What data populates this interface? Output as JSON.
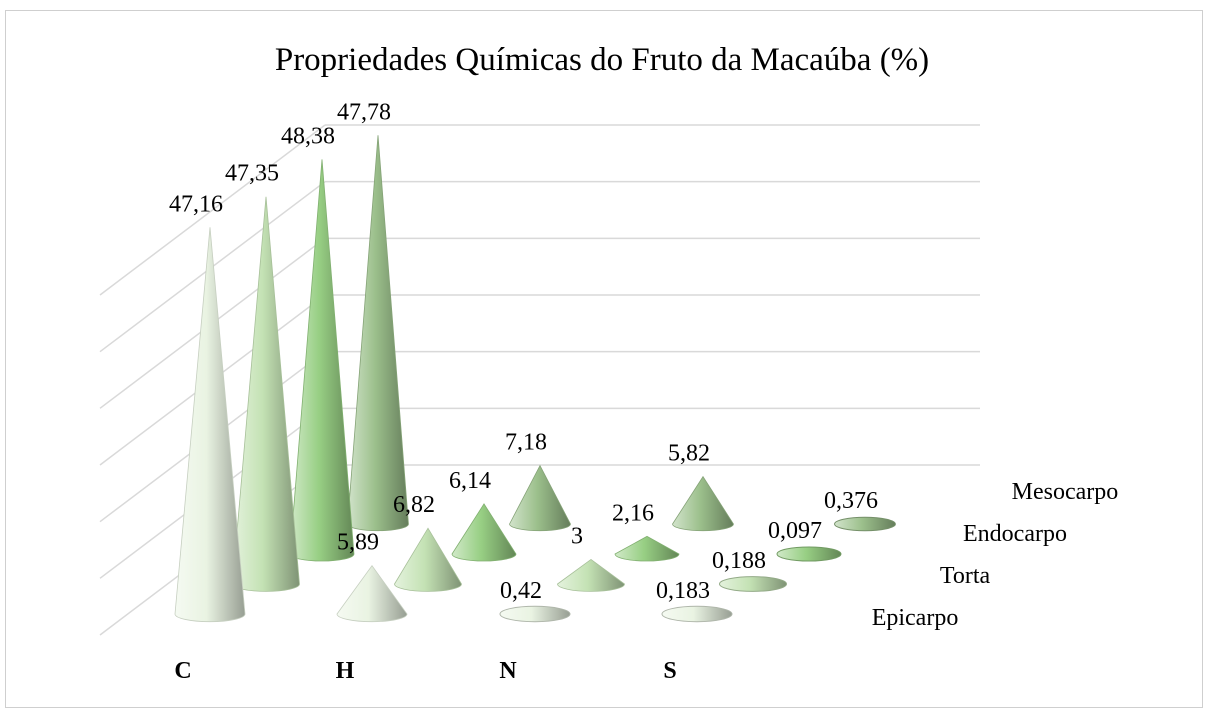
{
  "chart_data": {
    "type": "bar",
    "bar_shape": "cone",
    "view": "3d",
    "title": "Propriedades Químicas do Fruto da Macaúba (%)",
    "xlabel": "",
    "ylabel": "",
    "ylim": [
      0,
      60
    ],
    "grid": true,
    "categories": [
      "C",
      "H",
      "N",
      "S"
    ],
    "series": [
      {
        "name": "Epicarpo",
        "values": [
          47.16,
          5.89,
          0.42,
          0.183
        ],
        "labels": [
          "47,16",
          "5,89",
          "0,42",
          "0,183"
        ],
        "color": "#e9f3e2"
      },
      {
        "name": "Torta",
        "values": [
          47.35,
          6.82,
          3,
          0.188
        ],
        "labels": [
          "47,35",
          "6,82",
          "3",
          "0,188"
        ],
        "color": "#c4e2b4"
      },
      {
        "name": "Endocarpo",
        "values": [
          48.38,
          6.14,
          2.16,
          0.097
        ],
        "labels": [
          "48,38",
          "6,14",
          "2,16",
          "0,097"
        ],
        "color": "#98cf84"
      },
      {
        "name": "Mesocarpo",
        "values": [
          47.78,
          7.18,
          5.82,
          0.376
        ],
        "labels": [
          "47,78",
          "7,18",
          "5,82",
          "0,376"
        ],
        "color": "#9cc08c"
      }
    ]
  }
}
